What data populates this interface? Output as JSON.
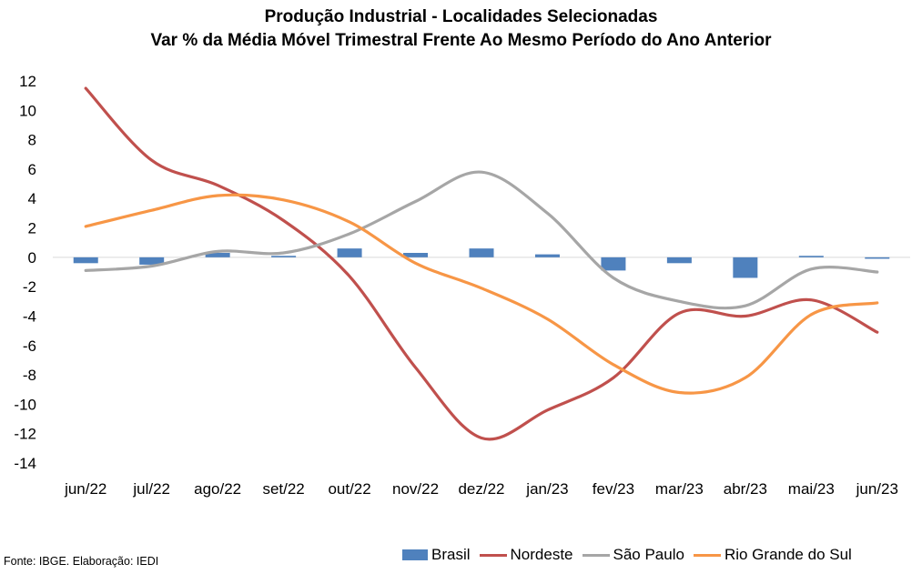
{
  "title": {
    "line1": "Produção Industrial - Localidades Selecionadas",
    "line2": "Var % da Média Móvel Trimestral Frente Ao Mesmo Período do Ano Anterior"
  },
  "source": "Fonte: IBGE. Elaboração: IEDI",
  "chart_data": {
    "type": "bar+line",
    "title": "Produção Industrial - Localidades Selecionadas",
    "subtitle": "Var % da Média Móvel Trimestral Frente Ao Mesmo Período do Ano Anterior",
    "categories": [
      "jun/22",
      "jul/22",
      "ago/22",
      "set/22",
      "out/22",
      "nov/22",
      "dez/22",
      "jan/23",
      "fev/23",
      "mar/23",
      "abr/23",
      "mai/23",
      "jun/23"
    ],
    "ylim": [
      -14,
      12
    ],
    "yticks": [
      12,
      10,
      8,
      6,
      4,
      2,
      0,
      -2,
      -4,
      -6,
      -8,
      -10,
      -12,
      -14
    ],
    "grid": false,
    "legend_position": "bottom",
    "series": [
      {
        "name": "Brasil",
        "type": "bar",
        "color": "#4F81BD",
        "values": [
          -0.4,
          -0.5,
          0.3,
          0.1,
          0.6,
          0.3,
          0.6,
          0.2,
          -0.9,
          -0.4,
          -1.4,
          0.1,
          -0.1
        ]
      },
      {
        "name": "Nordeste",
        "type": "line",
        "color": "#C0504D",
        "values": [
          11.5,
          6.6,
          4.9,
          2.5,
          -1.3,
          -7.5,
          -12.3,
          -10.4,
          -8.2,
          -3.8,
          -4.0,
          -2.9,
          -5.1
        ]
      },
      {
        "name": "São Paulo",
        "type": "line",
        "color": "#A6A6A6",
        "values": [
          -0.9,
          -0.6,
          0.4,
          0.3,
          1.6,
          3.8,
          5.8,
          3.0,
          -1.4,
          -3.0,
          -3.3,
          -0.8,
          -1.0
        ]
      },
      {
        "name": "Rio Grande do Sul",
        "type": "line",
        "color": "#F79646",
        "values": [
          2.1,
          3.2,
          4.2,
          3.9,
          2.4,
          -0.4,
          -2.1,
          -4.2,
          -7.3,
          -9.2,
          -8.2,
          -3.9,
          -3.1
        ]
      }
    ]
  }
}
